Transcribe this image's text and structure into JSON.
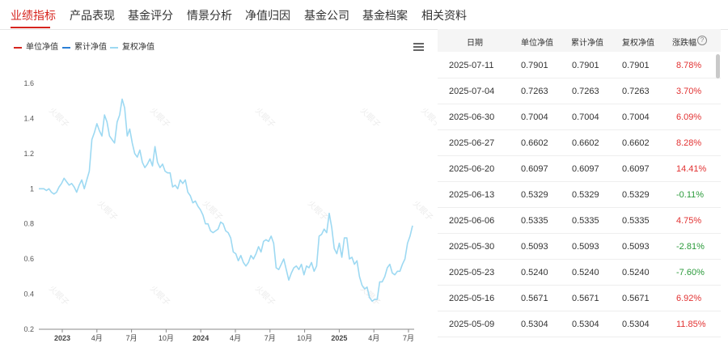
{
  "tabs": [
    {
      "label": "业绩指标",
      "active": true
    },
    {
      "label": "产品表现",
      "active": false
    },
    {
      "label": "基金评分",
      "active": false
    },
    {
      "label": "情景分析",
      "active": false
    },
    {
      "label": "净值归因",
      "active": false
    },
    {
      "label": "基金公司",
      "active": false
    },
    {
      "label": "基金档案",
      "active": false
    },
    {
      "label": "相关资料",
      "active": false
    }
  ],
  "legend": [
    {
      "label": "单位净值",
      "color": "#d6241e"
    },
    {
      "label": "累计净值",
      "color": "#2b7fd6"
    },
    {
      "label": "复权净值",
      "color": "#9dd9f2"
    }
  ],
  "menu_icon": "hamburger-menu-icon",
  "watermark_text": "火眼子",
  "chart_data": {
    "type": "line",
    "title": "",
    "xlabel": "",
    "ylabel": "",
    "ylim": [
      0.2,
      1.6
    ],
    "y_ticks": [
      "0.2",
      "0.4",
      "0.6",
      "0.8",
      "1",
      "1.2",
      "1.4",
      "1.6"
    ],
    "x_ticks": [
      "2023",
      "4月",
      "7月",
      "10月",
      "2024",
      "4月",
      "7月",
      "10月",
      "2025",
      "4月",
      "7月"
    ],
    "x_tick_bold": [
      true,
      false,
      false,
      false,
      true,
      false,
      false,
      false,
      true,
      false,
      false
    ],
    "grid": false,
    "legend_position": "top-left",
    "series_color": "#9dd9f2",
    "series": [
      {
        "name": "复权净值",
        "values": [
          1.0,
          1.0,
          1.0,
          0.99,
          1.0,
          0.98,
          0.97,
          0.98,
          1.01,
          1.03,
          1.06,
          1.04,
          1.02,
          1.03,
          1.01,
          0.98,
          1.02,
          1.05,
          1.0,
          1.05,
          1.1,
          1.28,
          1.32,
          1.37,
          1.33,
          1.3,
          1.42,
          1.38,
          1.3,
          1.28,
          1.26,
          1.38,
          1.42,
          1.51,
          1.46,
          1.3,
          1.34,
          1.26,
          1.2,
          1.18,
          1.22,
          1.15,
          1.12,
          1.14,
          1.17,
          1.13,
          1.24,
          1.15,
          1.12,
          1.14,
          1.1,
          1.09,
          1.09,
          1.01,
          1.02,
          1.0,
          1.05,
          1.03,
          1.05,
          0.98,
          0.96,
          0.92,
          0.93,
          0.9,
          0.88,
          0.85,
          0.8,
          0.8,
          0.76,
          0.75,
          0.76,
          0.77,
          0.81,
          0.8,
          0.76,
          0.75,
          0.72,
          0.64,
          0.63,
          0.59,
          0.62,
          0.58,
          0.56,
          0.58,
          0.62,
          0.6,
          0.63,
          0.67,
          0.64,
          0.7,
          0.71,
          0.7,
          0.73,
          0.69,
          0.55,
          0.54,
          0.57,
          0.6,
          0.54,
          0.48,
          0.52,
          0.55,
          0.56,
          0.54,
          0.57,
          0.51,
          0.56,
          0.55,
          0.58,
          0.53,
          0.56,
          0.73,
          0.74,
          0.77,
          0.75,
          0.86,
          0.78,
          0.66,
          0.63,
          0.69,
          0.61,
          0.72,
          0.72,
          0.6,
          0.61,
          0.57,
          0.59,
          0.5,
          0.45,
          0.43,
          0.44,
          0.38,
          0.36,
          0.37,
          0.37,
          0.47,
          0.47,
          0.5,
          0.55,
          0.57,
          0.52,
          0.51,
          0.53,
          0.53,
          0.57,
          0.6,
          0.69,
          0.73,
          0.79
        ]
      }
    ]
  },
  "table": {
    "headers": [
      "日期",
      "单位净值",
      "累计净值",
      "复权净值",
      "涨跌幅"
    ],
    "help_icon": "question-circle-icon",
    "rows": [
      {
        "date": "2025-07-11",
        "unit": "0.7901",
        "cum": "0.7901",
        "adj": "0.7901",
        "chg": "8.78%",
        "dir": "up"
      },
      {
        "date": "2025-07-04",
        "unit": "0.7263",
        "cum": "0.7263",
        "adj": "0.7263",
        "chg": "3.70%",
        "dir": "up"
      },
      {
        "date": "2025-06-30",
        "unit": "0.7004",
        "cum": "0.7004",
        "adj": "0.7004",
        "chg": "6.09%",
        "dir": "up"
      },
      {
        "date": "2025-06-27",
        "unit": "0.6602",
        "cum": "0.6602",
        "adj": "0.6602",
        "chg": "8.28%",
        "dir": "up"
      },
      {
        "date": "2025-06-20",
        "unit": "0.6097",
        "cum": "0.6097",
        "adj": "0.6097",
        "chg": "14.41%",
        "dir": "up"
      },
      {
        "date": "2025-06-13",
        "unit": "0.5329",
        "cum": "0.5329",
        "adj": "0.5329",
        "chg": "-0.11%",
        "dir": "down"
      },
      {
        "date": "2025-06-06",
        "unit": "0.5335",
        "cum": "0.5335",
        "adj": "0.5335",
        "chg": "4.75%",
        "dir": "up"
      },
      {
        "date": "2025-05-30",
        "unit": "0.5093",
        "cum": "0.5093",
        "adj": "0.5093",
        "chg": "-2.81%",
        "dir": "down"
      },
      {
        "date": "2025-05-23",
        "unit": "0.5240",
        "cum": "0.5240",
        "adj": "0.5240",
        "chg": "-7.60%",
        "dir": "down"
      },
      {
        "date": "2025-05-16",
        "unit": "0.5671",
        "cum": "0.5671",
        "adj": "0.5671",
        "chg": "6.92%",
        "dir": "up"
      },
      {
        "date": "2025-05-09",
        "unit": "0.5304",
        "cum": "0.5304",
        "adj": "0.5304",
        "chg": "11.85%",
        "dir": "up"
      }
    ]
  },
  "colors": {
    "accent": "#d6241e",
    "up": "#e23232",
    "down": "#2a9a3a"
  }
}
